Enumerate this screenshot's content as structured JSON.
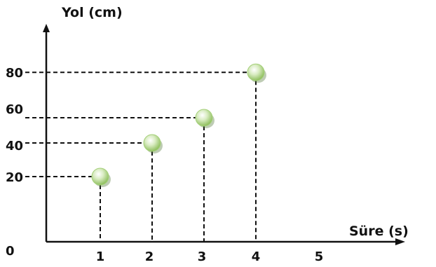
{
  "chart_data": {
    "type": "scatter",
    "ylabel": "Yol (cm)",
    "xlabel": "Süre (s)",
    "origin_label": "0",
    "x_ticks": [
      "1",
      "2",
      "3",
      "4",
      "5"
    ],
    "y_ticks": [
      "20",
      "40",
      "60",
      "80"
    ],
    "xlim": [
      0,
      5
    ],
    "ylim": [
      0,
      80
    ],
    "grid": false,
    "point_color": "#a5d07a",
    "points": [
      {
        "x": 1,
        "y": 20
      },
      {
        "x": 2,
        "y": 40
      },
      {
        "x": 3,
        "y": 55
      },
      {
        "x": 4,
        "y": 82
      }
    ]
  }
}
